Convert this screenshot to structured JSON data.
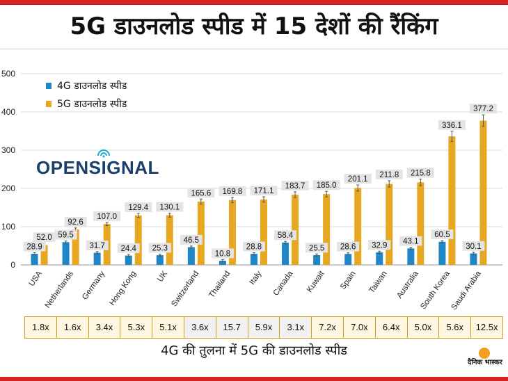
{
  "title": "5G डाउनलोड स्पीड में 15 देशों की रैंकिंग",
  "footer_caption": "4G की तुलना में 5G की डाउनलोड स्पीड",
  "logo_text": "OPENSIGNAL",
  "brand_name": "दैनिक भास्कर",
  "colors": {
    "bar_4g": "#1f86c8",
    "bar_5g": "#e7a721",
    "label_bg": "#e4e4e4",
    "accent_red": "#d7231f",
    "brand_orange": "#f39c1d"
  },
  "chart_data": {
    "type": "bar",
    "title": "5G डाउनलोड स्पीड में 15 देशों की रैंकिंग",
    "xlabel": "",
    "ylabel": "",
    "ylim": [
      0,
      500
    ],
    "yticks": [
      0,
      100,
      200,
      300,
      400,
      500
    ],
    "grid": true,
    "legend_position": "top-left",
    "categories": [
      "USA",
      "Netherlands",
      "Germany",
      "Hong Kong",
      "UK",
      "Switzerland",
      "Thailand",
      "Italy",
      "Canada",
      "Kuwait",
      "Spain",
      "Taiwan",
      "Australia",
      "South Korea",
      "Saudi Arabia"
    ],
    "series": [
      {
        "name": "4G डाउनलोड स्पीड",
        "values": [
          28.9,
          59.5,
          31.7,
          24.4,
          25.3,
          46.5,
          10.8,
          28.8,
          58.4,
          25.5,
          28.6,
          32.9,
          43.1,
          60.5,
          30.1
        ]
      },
      {
        "name": "5G डाउनलोड स्पीड",
        "values": [
          52.0,
          92.6,
          107.0,
          129.4,
          130.1,
          165.6,
          169.8,
          171.1,
          183.7,
          185.0,
          201.1,
          211.8,
          215.8,
          336.1,
          377.2
        ]
      }
    ],
    "ratios": [
      "1.8x",
      "1.6x",
      "3.4x",
      "5.3x",
      "5.1x",
      "3.6x",
      "15.7",
      "5.9x",
      "3.1x",
      "7.2x",
      "7.0x",
      "6.4x",
      "5.0x",
      "5.6x",
      "12.5x"
    ]
  }
}
